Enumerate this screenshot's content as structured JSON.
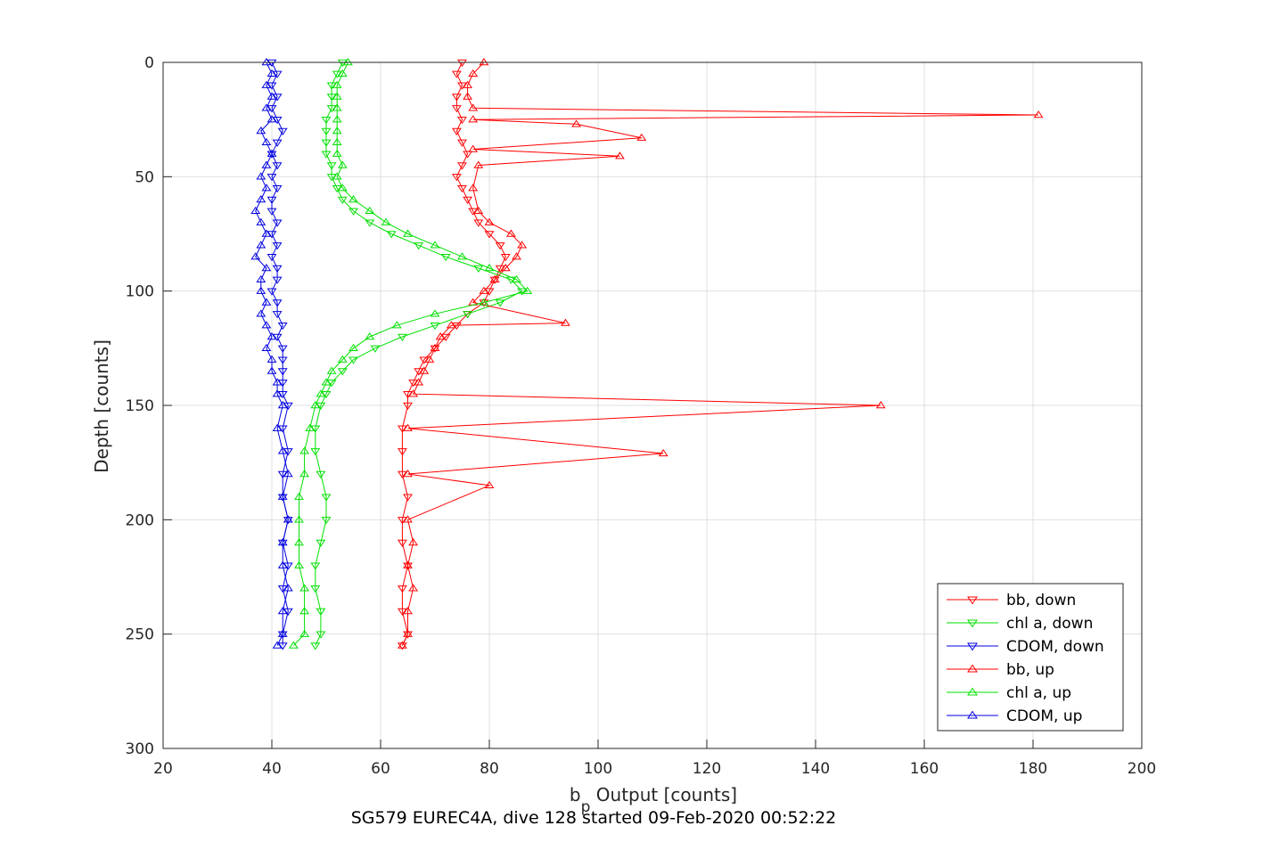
{
  "chart_data": {
    "type": "line",
    "title": "",
    "xlabel": "b",
    "xlabel_sub": "p",
    "xlabel_rest": " Output [counts]",
    "ylabel": "Depth [counts]",
    "caption": "SG579 EUREC4A, dive 128 started 09-Feb-2020 00:52:22",
    "xlim": [
      20,
      200
    ],
    "ylim": [
      0,
      300
    ],
    "y_reversed": true,
    "x_ticks": [
      20,
      40,
      60,
      80,
      100,
      120,
      140,
      160,
      180,
      200
    ],
    "y_ticks": [
      0,
      50,
      100,
      150,
      200,
      250,
      300
    ],
    "grid": true,
    "legend_position": "bottom-right",
    "series": [
      {
        "name": "bb, down",
        "color": "#ff0000",
        "marker": "triangle-down",
        "x": [
          75,
          74,
          75,
          74,
          74,
          75,
          74,
          75,
          76,
          75,
          74,
          75,
          76,
          77,
          78,
          80,
          82,
          83,
          82,
          81,
          80,
          79,
          76,
          74,
          72,
          70,
          68,
          67,
          66,
          65,
          65,
          64,
          64,
          64,
          65,
          64,
          64,
          65,
          64,
          64,
          65,
          64
        ],
        "y": [
          0,
          5,
          10,
          15,
          20,
          25,
          30,
          35,
          40,
          45,
          50,
          55,
          60,
          65,
          70,
          75,
          80,
          85,
          90,
          95,
          100,
          105,
          110,
          115,
          120,
          125,
          130,
          135,
          140,
          145,
          150,
          160,
          170,
          180,
          190,
          200,
          210,
          220,
          230,
          240,
          250,
          255
        ]
      },
      {
        "name": "chl a, down",
        "color": "#00e000",
        "marker": "triangle-down",
        "x": [
          53,
          52,
          51,
          51,
          51,
          50,
          50,
          50,
          50,
          51,
          51,
          52,
          53,
          55,
          58,
          62,
          67,
          72,
          78,
          84,
          86,
          82,
          76,
          70,
          64,
          59,
          55,
          53,
          51,
          50,
          49,
          48,
          48,
          49,
          50,
          50,
          49,
          48,
          48,
          49,
          49,
          48
        ],
        "y": [
          0,
          5,
          10,
          15,
          20,
          25,
          30,
          35,
          40,
          45,
          50,
          55,
          60,
          65,
          70,
          75,
          80,
          85,
          90,
          95,
          100,
          105,
          110,
          115,
          120,
          125,
          130,
          135,
          140,
          145,
          150,
          160,
          170,
          180,
          190,
          200,
          210,
          220,
          230,
          240,
          250,
          255
        ]
      },
      {
        "name": "CDOM, down",
        "color": "#0000e0",
        "marker": "triangle-down",
        "x": [
          40,
          41,
          40,
          41,
          40,
          41,
          42,
          41,
          40,
          41,
          40,
          41,
          40,
          40,
          41,
          40,
          41,
          40,
          41,
          41,
          40,
          41,
          41,
          42,
          41,
          42,
          42,
          42,
          42,
          42,
          43,
          42,
          43,
          42,
          42,
          43,
          42,
          43,
          42,
          43,
          42,
          42
        ],
        "y": [
          0,
          5,
          10,
          15,
          20,
          25,
          30,
          35,
          40,
          45,
          50,
          55,
          60,
          65,
          70,
          75,
          80,
          85,
          90,
          95,
          100,
          105,
          110,
          115,
          120,
          125,
          130,
          135,
          140,
          145,
          150,
          160,
          170,
          180,
          190,
          200,
          210,
          220,
          230,
          240,
          250,
          255
        ]
      },
      {
        "name": "bb, up",
        "color": "#ff0000",
        "marker": "triangle-up",
        "x": [
          79,
          77,
          76,
          76,
          77,
          181,
          77,
          96,
          108,
          77,
          104,
          78,
          77,
          78,
          80,
          84,
          86,
          85,
          83,
          81,
          79,
          77,
          94,
          73,
          71,
          70,
          69,
          68,
          67,
          66,
          152,
          65,
          112,
          65,
          80,
          65,
          66,
          65,
          66,
          65,
          65,
          64
        ],
        "y": [
          0,
          5,
          10,
          15,
          20,
          23,
          25,
          27,
          33,
          38,
          41,
          45,
          55,
          65,
          70,
          75,
          80,
          85,
          90,
          95,
          100,
          105,
          114,
          115,
          120,
          125,
          130,
          135,
          140,
          145,
          150,
          160,
          171,
          180,
          185,
          200,
          210,
          220,
          230,
          240,
          250,
          255
        ]
      },
      {
        "name": "chl a, up",
        "color": "#00e000",
        "marker": "triangle-up",
        "x": [
          54,
          53,
          52,
          52,
          52,
          52,
          52,
          52,
          52,
          53,
          52,
          53,
          55,
          58,
          61,
          65,
          70,
          75,
          80,
          85,
          87,
          79,
          70,
          63,
          58,
          55,
          53,
          51,
          50,
          49,
          48,
          47,
          46,
          46,
          45,
          45,
          45,
          45,
          46,
          46,
          46,
          44
        ],
        "y": [
          0,
          5,
          10,
          15,
          20,
          25,
          30,
          35,
          40,
          45,
          50,
          55,
          60,
          65,
          70,
          75,
          80,
          85,
          90,
          95,
          100,
          105,
          110,
          115,
          120,
          125,
          130,
          135,
          140,
          145,
          150,
          160,
          170,
          180,
          190,
          200,
          210,
          220,
          230,
          240,
          250,
          255
        ]
      },
      {
        "name": "CDOM, up",
        "color": "#0000e0",
        "marker": "triangle-up",
        "x": [
          39,
          40,
          39,
          40,
          39,
          40,
          38,
          39,
          40,
          39,
          38,
          39,
          38,
          37,
          38,
          39,
          38,
          37,
          39,
          38,
          38,
          39,
          38,
          39,
          40,
          39,
          40,
          40,
          41,
          41,
          42,
          41,
          42,
          43,
          42,
          43,
          42,
          42,
          43,
          42,
          42,
          41
        ],
        "y": [
          0,
          5,
          10,
          15,
          20,
          25,
          30,
          35,
          40,
          45,
          50,
          55,
          60,
          65,
          70,
          75,
          80,
          85,
          90,
          95,
          100,
          105,
          110,
          115,
          120,
          125,
          130,
          135,
          140,
          145,
          150,
          160,
          170,
          180,
          190,
          200,
          210,
          220,
          230,
          240,
          250,
          255
        ]
      }
    ]
  }
}
